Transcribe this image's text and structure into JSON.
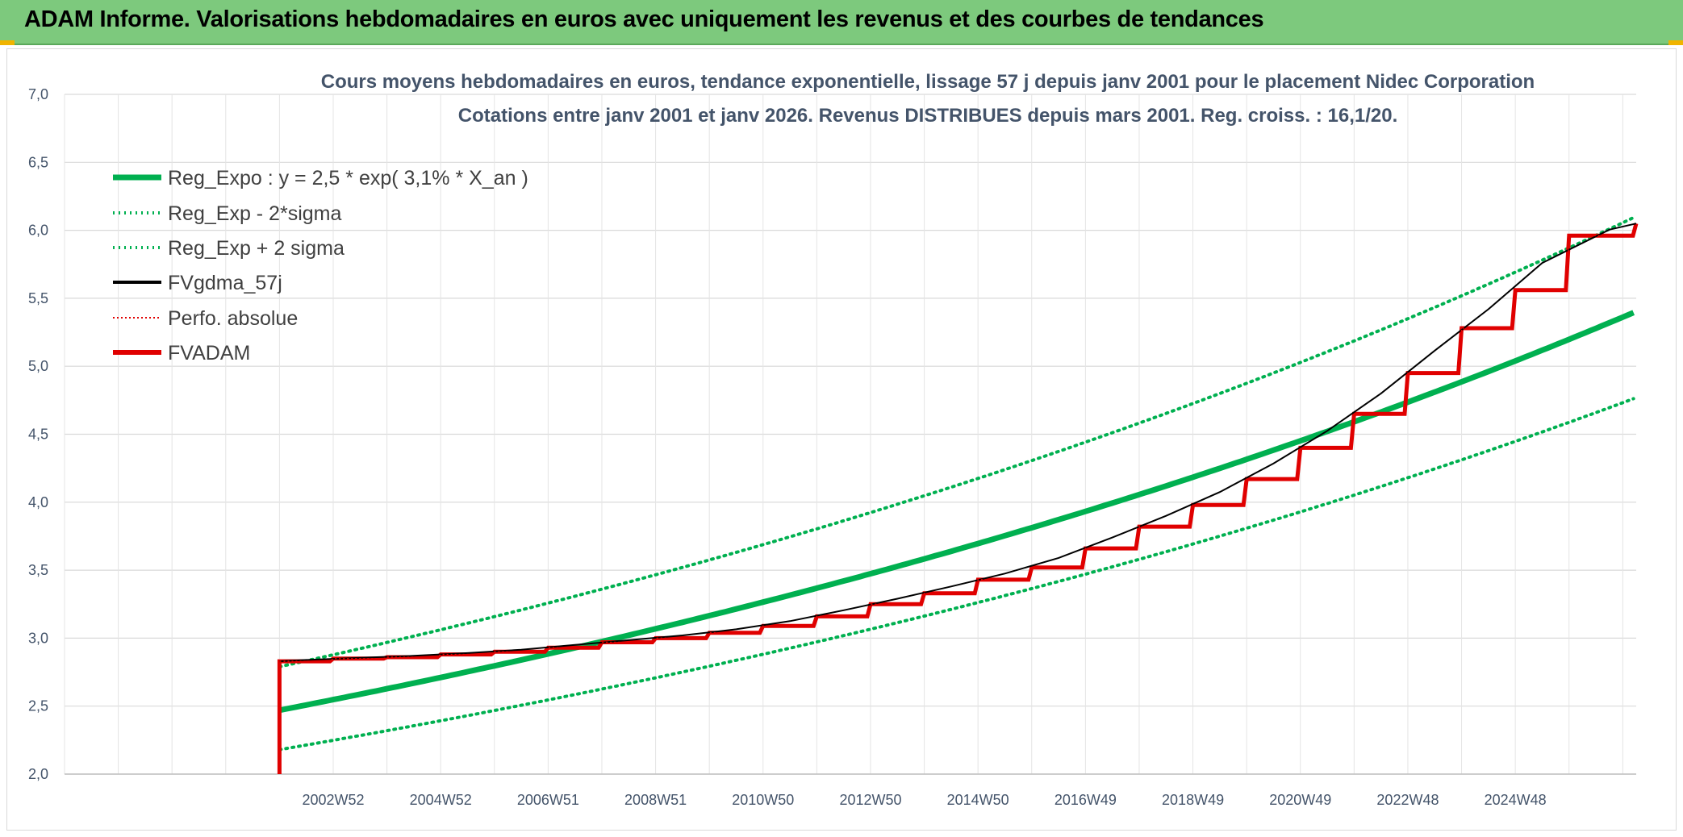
{
  "header": {
    "title": "ADAM Informe. Valorisations hebdomadaires en euros avec uniquement les revenus et des courbes de tendances"
  },
  "colors": {
    "banner": "#7dc97d",
    "reg": "#00b050",
    "red": "#e00000",
    "black": "#000000",
    "grid": "#d9d9d9",
    "text": "#44546a"
  },
  "chart_data": {
    "type": "line",
    "title_line1": "Cours moyens hebdomadaires en euros, tendance exponentielle, lissage 57 j depuis janv 2001 pour le placement Nidec Corporation",
    "title_line2": "Cotations entre janv 2001 et janv 2026. Revenus DISTRIBUES depuis mars 2001. Reg. croiss. : 16,1/20.",
    "y_ticks": [
      "2,0",
      "2,5",
      "3,0",
      "3,5",
      "4,0",
      "4,5",
      "5,0",
      "5,5",
      "6,0",
      "6,5",
      "7,0"
    ],
    "ylim": [
      2.0,
      7.0
    ],
    "x_ticks": [
      "2002W52",
      "2004W52",
      "2006W51",
      "2008W51",
      "2010W50",
      "2012W50",
      "2014W50",
      "2016W49",
      "2018W49",
      "2020W49",
      "2022W48",
      "2024W48"
    ],
    "xlim": [
      1997,
      2026.25
    ],
    "x_tick_years": [
      2002,
      2004,
      2006,
      2008,
      2010,
      2012,
      2014,
      2016,
      2018,
      2020,
      2022,
      2024
    ],
    "legend": [
      "Reg_Expo : y = 2,5 * exp( 3,1% *  X_an )",
      "Reg_Exp - 2*sigma",
      "Reg_Exp + 2 sigma",
      "FVgdma_57j",
      "Perfo. absolue",
      "FVADAM"
    ],
    "series": [
      {
        "name": "Reg_Expo",
        "start_year": 2001.0,
        "end_year": 2026.25,
        "base": 2.47,
        "rate": 0.031
      },
      {
        "name": "Reg_Exp - 2*sigma",
        "base": 2.18,
        "rate": 0.031
      },
      {
        "name": "Reg_Exp + 2 sigma",
        "base": 2.79,
        "rate": 0.031
      },
      {
        "name": "FVgdma_57j",
        "note": "smoothed FVADAM"
      },
      {
        "name": "FVADAM",
        "start": 2.0,
        "x": [
          2001.0,
          2002.0,
          2003.0,
          2004.0,
          2005.0,
          2006.0,
          2007.0,
          2008.0,
          2009.0,
          2010.0,
          2011.0,
          2012.0,
          2013.0,
          2014.0,
          2015.0,
          2016.0,
          2017.0,
          2018.0,
          2019.0,
          2020.0,
          2021.0,
          2022.0,
          2023.0,
          2024.0,
          2025.0,
          2026.25
        ],
        "values": [
          2.83,
          2.85,
          2.86,
          2.88,
          2.9,
          2.93,
          2.97,
          3.0,
          3.04,
          3.09,
          3.16,
          3.25,
          3.33,
          3.43,
          3.52,
          3.66,
          3.82,
          3.98,
          4.17,
          4.4,
          4.65,
          4.95,
          5.28,
          5.56,
          5.96,
          6.05
        ]
      }
    ]
  }
}
